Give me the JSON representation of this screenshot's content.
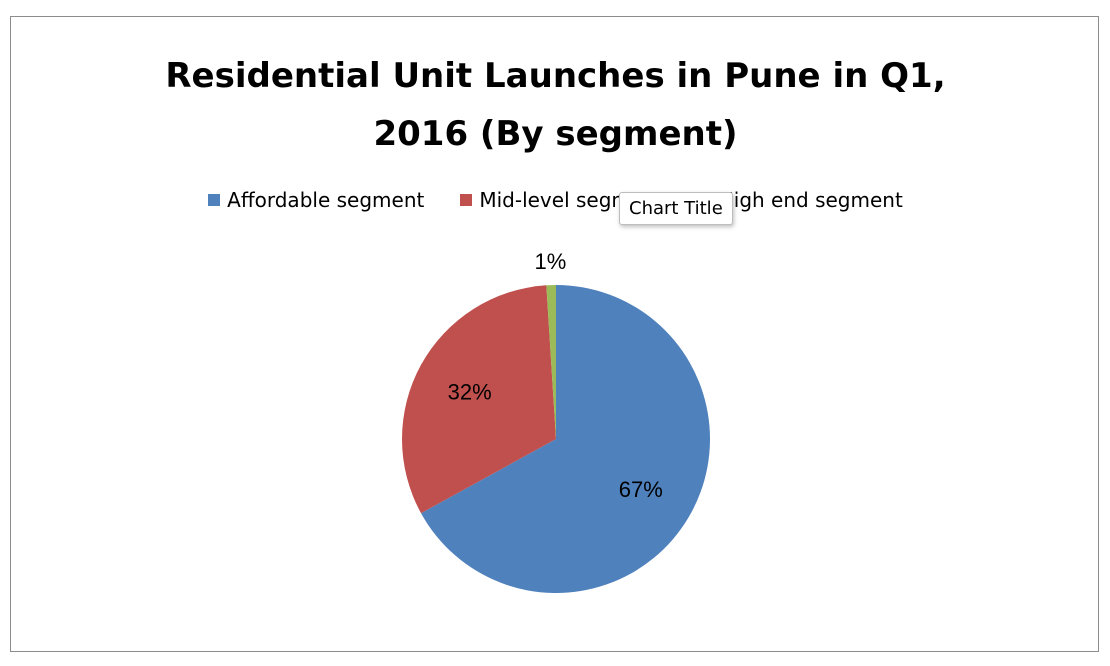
{
  "tooltip": {
    "text": "Chart Title"
  },
  "chart_data": {
    "type": "pie",
    "title_lines": [
      "Residential Unit Launches in Pune in Q1,",
      "2016 (By segment)"
    ],
    "categories": [
      "Affordable segment",
      "Mid-level segment",
      "High end segment"
    ],
    "values": [
      67,
      32,
      1
    ],
    "data_labels": [
      "67%",
      "32%",
      "1%"
    ],
    "colors": [
      "#4F81BD",
      "#C0504D",
      "#9BBB59"
    ],
    "legend_position": "top"
  }
}
